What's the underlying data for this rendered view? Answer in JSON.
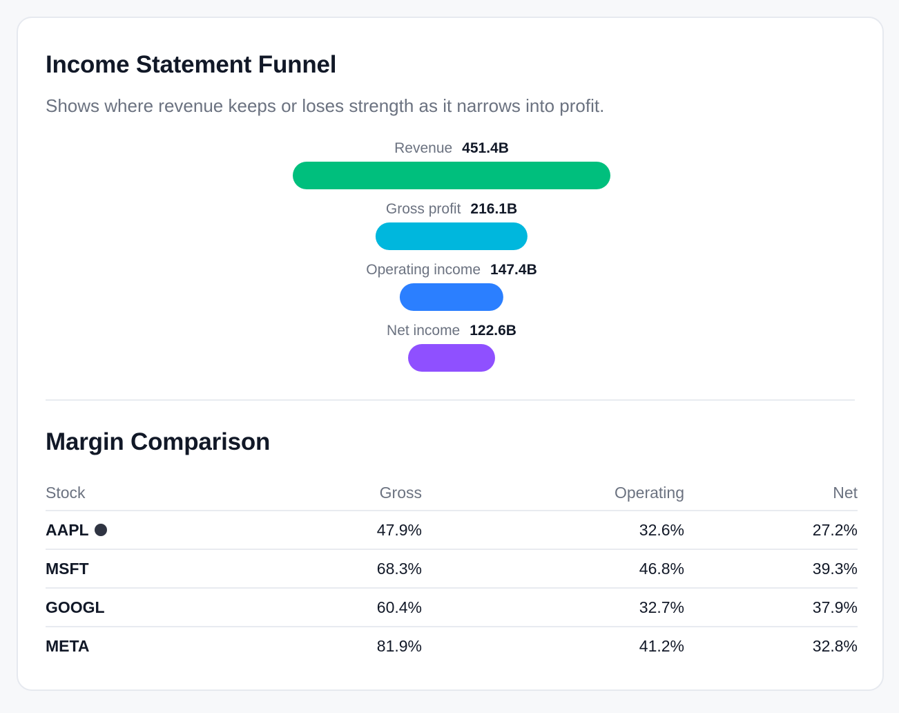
{
  "funnel": {
    "title": "Income Statement Funnel",
    "subtitle": "Shows where revenue keeps or loses strength as it narrows into profit.",
    "stages": [
      {
        "label": "Revenue",
        "value": "451.4B",
        "amount": 451.4,
        "color": "#00bf7d"
      },
      {
        "label": "Gross profit",
        "value": "216.1B",
        "amount": 216.1,
        "color": "#00b7dd"
      },
      {
        "label": "Operating income",
        "value": "147.4B",
        "amount": 147.4,
        "color": "#2b7fff"
      },
      {
        "label": "Net income",
        "value": "122.6B",
        "amount": 122.6,
        "color": "#8f50ff"
      }
    ]
  },
  "margins": {
    "title": "Margin Comparison",
    "columns": [
      "Stock",
      "Gross",
      "Operating",
      "Net"
    ],
    "rows": [
      {
        "stock": "AAPL",
        "selected": true,
        "gross": "47.9%",
        "operating": "32.6%",
        "net": "27.2%"
      },
      {
        "stock": "MSFT",
        "selected": false,
        "gross": "68.3%",
        "operating": "46.8%",
        "net": "39.3%"
      },
      {
        "stock": "GOOGL",
        "selected": false,
        "gross": "60.4%",
        "operating": "32.7%",
        "net": "37.9%"
      },
      {
        "stock": "META",
        "selected": false,
        "gross": "81.9%",
        "operating": "41.2%",
        "net": "32.8%"
      }
    ]
  }
}
